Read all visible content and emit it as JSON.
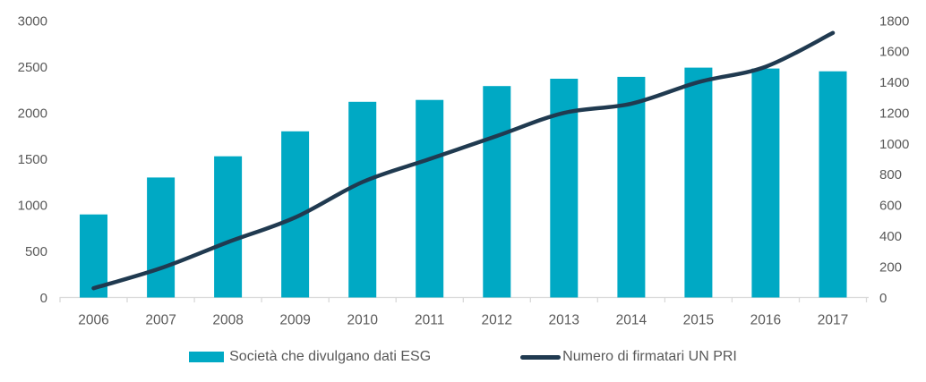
{
  "chart_data": {
    "type": "combo-bar-line",
    "categories": [
      "2006",
      "2007",
      "2008",
      "2009",
      "2010",
      "2011",
      "2012",
      "2013",
      "2014",
      "2015",
      "2016",
      "2017"
    ],
    "series": [
      {
        "name": "Società che divulgano dati ESG",
        "type": "bar",
        "axis": "left",
        "color": "#00A9C4",
        "values": [
          900,
          1300,
          1530,
          1800,
          2120,
          2140,
          2290,
          2370,
          2390,
          2490,
          2480,
          2450
        ]
      },
      {
        "name": "Numero di firmatari UN PRI",
        "type": "line",
        "axis": "right",
        "color": "#203A50",
        "values": [
          60,
          190,
          360,
          520,
          750,
          900,
          1050,
          1200,
          1260,
          1400,
          1500,
          1720
        ]
      }
    ],
    "left_axis": {
      "min": 0,
      "max": 3000,
      "step": 500,
      "ticks": [
        "0",
        "500",
        "1000",
        "1500",
        "2000",
        "2500",
        "3000"
      ]
    },
    "right_axis": {
      "min": 0,
      "max": 1800,
      "step": 200,
      "ticks": [
        "0",
        "200",
        "400",
        "600",
        "800",
        "1000",
        "1200",
        "1400",
        "1600",
        "1800"
      ]
    },
    "title": "",
    "xlabel": "",
    "ylabel": "",
    "grid": false,
    "legend_position": "bottom",
    "line_smoothed": true
  },
  "colors": {
    "bar": "#00A9C4",
    "line": "#203A50",
    "axis_text": "#595959",
    "axis_line": "#D9D9D9",
    "background": "#FFFFFF"
  }
}
